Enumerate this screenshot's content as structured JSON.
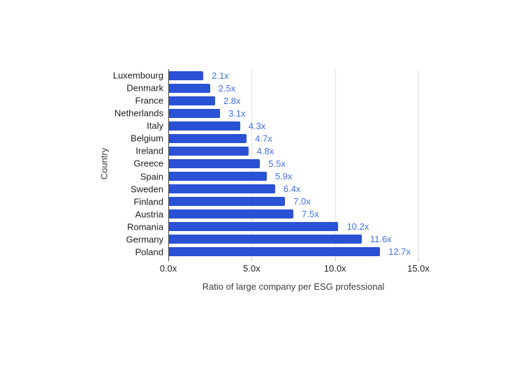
{
  "chart_data": {
    "type": "bar",
    "orientation": "horizontal",
    "categories": [
      "Luxembourg",
      "Denmark",
      "France",
      "Netherlands",
      "Italy",
      "Belgium",
      "Ireland",
      "Greece",
      "Spain",
      "Sweden",
      "Finland",
      "Austria",
      "Romania",
      "Germany",
      "Poland"
    ],
    "values": [
      2.1,
      2.5,
      2.8,
      3.1,
      4.3,
      4.7,
      4.8,
      5.5,
      5.9,
      6.4,
      7.0,
      7.5,
      10.2,
      11.6,
      12.7
    ],
    "value_labels": [
      "2.1x",
      "2.5x",
      "2.8x",
      "3.1x",
      "4.3x",
      "4.7x",
      "4.8x",
      "5.5x",
      "5.9x",
      "6.4x",
      "7.0x",
      "7.5x",
      "10.2x",
      "11.6x",
      "12.7x"
    ],
    "xlabel": "Ratio of large company per ESG professional",
    "ylabel": "Country",
    "xlim": [
      0,
      15
    ],
    "x_ticks": [
      {
        "value": 0,
        "label": "0.0x"
      },
      {
        "value": 5,
        "label": "5.0x"
      },
      {
        "value": 10,
        "label": "10.0x"
      },
      {
        "value": 15,
        "label": "15.0x"
      }
    ],
    "grid": true,
    "legend": "none",
    "colors": {
      "bar": "#2b52d4",
      "value_label": "#4170e8",
      "axis_line": "#424242",
      "gridline": "#e2e2e2",
      "tick": "#bdbdbd",
      "label_text": "#212121",
      "axis_title_text": "#3c3c3c"
    }
  }
}
